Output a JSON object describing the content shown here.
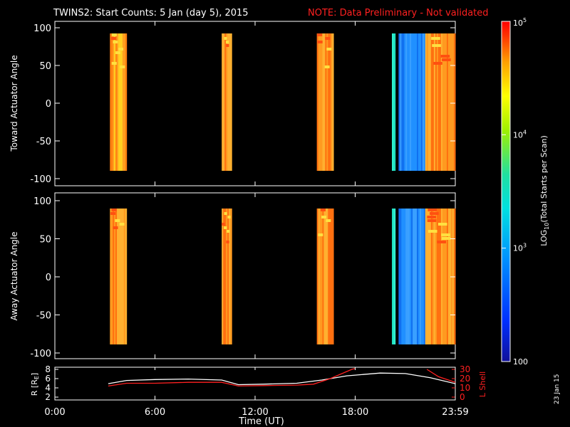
{
  "header": {
    "title": "TWINS2: Start Counts:  5 Jan (day   5), 2015",
    "note": "NOTE: Data Preliminary - Not validated",
    "note_color": "#ff2020"
  },
  "panels": {
    "top_ylabel": "Toward Actuator Angle",
    "bottom_ylabel": "Away Actuator Angle",
    "yticks": [
      "100",
      "50",
      "0",
      "-50",
      "-100"
    ],
    "ytick_values": [
      100,
      50,
      0,
      -50,
      -100
    ]
  },
  "colorbar": {
    "label": "LOG10(Total Starts per Scan)",
    "label_main": "LOG",
    "label_sub": "10",
    "label_rest": "(Total Starts per Scan)",
    "ticks": [
      {
        "text": "10",
        "exp": "5",
        "value": 100000
      },
      {
        "text": "10",
        "exp": "4",
        "value": 10000
      },
      {
        "text": "10",
        "exp": "3",
        "value": 1000
      },
      {
        "text": "100",
        "exp": "",
        "value": 100
      }
    ]
  },
  "orbit_panel": {
    "left_label": "R [RE]",
    "left_label_main": "R [R",
    "left_label_sub": "E",
    "left_label_end": "]",
    "left_ticks": [
      "8",
      "6",
      "4",
      "2"
    ],
    "right_label": "L Shell",
    "right_ticks": [
      "30",
      "20",
      "10",
      "0"
    ],
    "right_color": "#ff2020"
  },
  "xaxis": {
    "ticks": [
      "0:00",
      "6:00",
      "12:00",
      "18:00",
      "23:59"
    ],
    "label": "Time (UT)"
  },
  "date_stamp": "23 Jan 15",
  "chart_data": [
    {
      "type": "heatmap",
      "title": "TWINS2: Start Counts:  5 Jan (day   5), 2015",
      "xlabel": "Time (UT)",
      "ylabel": "Toward Actuator Angle",
      "xlim_hours": [
        0,
        24
      ],
      "ylim": [
        -100,
        100
      ],
      "color_scale": "log10",
      "clim": [
        100,
        100000
      ],
      "data_intervals_hours": [
        {
          "start": 3.3,
          "end": 4.3,
          "level": "orange/yellow (~10^4.5)"
        },
        {
          "start": 10.0,
          "end": 10.6,
          "level": "orange (~10^4.6)"
        },
        {
          "start": 15.7,
          "end": 16.7,
          "level": "orange (~10^4.6)"
        },
        {
          "start": 20.2,
          "end": 20.4,
          "level": "cyan (~10^3.3)"
        },
        {
          "start": 20.6,
          "end": 22.2,
          "level": "blue (~10^2.8)"
        },
        {
          "start": 22.2,
          "end": 24.0,
          "level": "orange (~10^4.6)"
        }
      ]
    },
    {
      "type": "heatmap",
      "xlabel": "Time (UT)",
      "ylabel": "Away Actuator Angle",
      "xlim_hours": [
        0,
        24
      ],
      "ylim": [
        -100,
        100
      ],
      "color_scale": "log10",
      "clim": [
        100,
        100000
      ],
      "data_intervals_hours": [
        {
          "start": 3.3,
          "end": 4.3,
          "level": "orange (~10^4.6)"
        },
        {
          "start": 10.0,
          "end": 10.6,
          "level": "orange (~10^4.6)"
        },
        {
          "start": 15.7,
          "end": 16.7,
          "level": "orange (~10^4.6)"
        },
        {
          "start": 20.2,
          "end": 20.4,
          "level": "cyan (~10^3.3)"
        },
        {
          "start": 20.6,
          "end": 22.2,
          "level": "blue (~10^2.8)"
        },
        {
          "start": 22.2,
          "end": 24.0,
          "level": "orange (~10^4.6)"
        }
      ]
    },
    {
      "type": "line",
      "xlabel": "Time (UT)",
      "ylabel": "R [RE]",
      "ylim": [
        2,
        8
      ],
      "y2label": "L Shell",
      "y2lim": [
        0,
        30
      ],
      "series": [
        {
          "name": "R [RE]",
          "color": "#ffffff",
          "x": [
            3.2,
            4.3,
            6.0,
            8.0,
            10.0,
            11.0,
            12.5,
            14.5,
            16.0,
            17.5,
            19.5,
            21.0,
            22.5,
            24.0
          ],
          "y": [
            4.9,
            5.6,
            5.8,
            5.9,
            5.7,
            4.7,
            4.8,
            5.0,
            5.7,
            6.6,
            7.2,
            7.1,
            6.2,
            4.9
          ]
        },
        {
          "name": "L Shell",
          "color": "#ff2020",
          "x": [
            3.2,
            4.3,
            6.0,
            8.0,
            10.0,
            11.0,
            12.5,
            14.5,
            15.5,
            16.5,
            17.8,
            18.0
          ],
          "y": [
            12,
            15,
            15,
            16,
            16,
            12,
            12.5,
            13,
            14,
            20,
            30,
            32
          ]
        },
        {
          "name": "L Shell (late)",
          "color": "#ff2020",
          "x": [
            22.3,
            23.0,
            24.0
          ],
          "y": [
            30,
            22,
            16
          ]
        }
      ]
    }
  ]
}
